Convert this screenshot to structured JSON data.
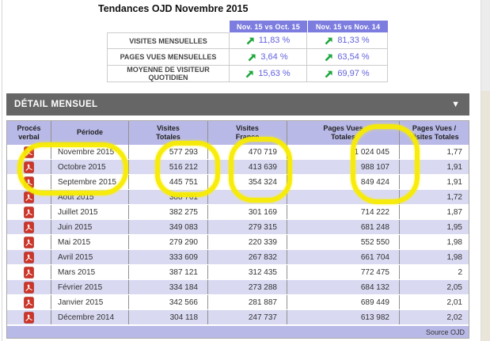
{
  "title": "Tendances OJD Novembre 2015",
  "summary": {
    "col_headers": [
      "Nov. 15 vs Oct. 15",
      "Nov. 15 vs Nov. 14"
    ],
    "rows": [
      {
        "label": "VISITES MENSUELLES",
        "values": [
          "11,83 %",
          "81,33 %"
        ]
      },
      {
        "label": "PAGES VUES MENSUELLES",
        "values": [
          "3,64 %",
          "63,54 %"
        ]
      },
      {
        "label": "MOYENNE DE VISITEUR QUOTIDIEN",
        "values": [
          "15,63 %",
          "69,97 %"
        ]
      }
    ],
    "trend_icon": "up-right-arrow"
  },
  "detail": {
    "section_title": "DÉTAIL MENSUEL",
    "collapse_icon": "▼",
    "col_headers": [
      "Procés\nverbal",
      "Période",
      "Visites\nTotales",
      "Visites\nFrance",
      "Pages Vues\nTotales",
      "Pages Vues /\nVisites Totales"
    ],
    "pdf_icon": "pdf-file-icon",
    "rows": [
      {
        "periode": "Novembre 2015",
        "visites_totales": "577 293",
        "visites_france": "470 719",
        "pages_vues_totales": "1 024 045",
        "ratio": "1,77"
      },
      {
        "periode": "Octobre 2015",
        "visites_totales": "516 212",
        "visites_france": "413 639",
        "pages_vues_totales": "988 107",
        "ratio": "1,91"
      },
      {
        "periode": "Septembre 2015",
        "visites_totales": "445 751",
        "visites_france": "354 324",
        "pages_vues_totales": "849 424",
        "ratio": "1,91"
      },
      {
        "periode": "Août 2015",
        "visites_totales": "388 761",
        "visites_france": "",
        "pages_vues_totales": "",
        "ratio": "1,72"
      },
      {
        "periode": "Juillet 2015",
        "visites_totales": "382 275",
        "visites_france": "301 169",
        "pages_vues_totales": "714 222",
        "ratio": "1,87"
      },
      {
        "periode": "Juin 2015",
        "visites_totales": "349 083",
        "visites_france": "279 315",
        "pages_vues_totales": "681 248",
        "ratio": "1,95"
      },
      {
        "periode": "Mai 2015",
        "visites_totales": "279 290",
        "visites_france": "220 339",
        "pages_vues_totales": "552 550",
        "ratio": "1,98"
      },
      {
        "periode": "Avril 2015",
        "visites_totales": "333 609",
        "visites_france": "267 832",
        "pages_vues_totales": "661 704",
        "ratio": "1,98"
      },
      {
        "periode": "Mars 2015",
        "visites_totales": "387 121",
        "visites_france": "312 435",
        "pages_vues_totales": "772 475",
        "ratio": "2"
      },
      {
        "periode": "Février 2015",
        "visites_totales": "334 184",
        "visites_france": "273 288",
        "pages_vues_totales": "684 132",
        "ratio": "2,05"
      },
      {
        "periode": "Janvier 2015",
        "visites_totales": "342 566",
        "visites_france": "281 887",
        "pages_vues_totales": "689 449",
        "ratio": "2,01"
      },
      {
        "periode": "Décembre 2014",
        "visites_totales": "304 118",
        "visites_france": "247 737",
        "pages_vues_totales": "613 982",
        "ratio": "2,02"
      }
    ],
    "footer": "Source OJD"
  },
  "colors": {
    "summary_header_bg": "#7d7de0",
    "value_text": "#6262dd",
    "trend_green": "#1ea53c",
    "section_bar_bg": "#666666",
    "table_header_bg": "#b9b9e8",
    "row_alt_bg": "#d9d9f2",
    "highlight_yellow": "#f8ec00",
    "pdf_red": "#cd3529",
    "side_strip_beige": "#e9e5d9"
  }
}
